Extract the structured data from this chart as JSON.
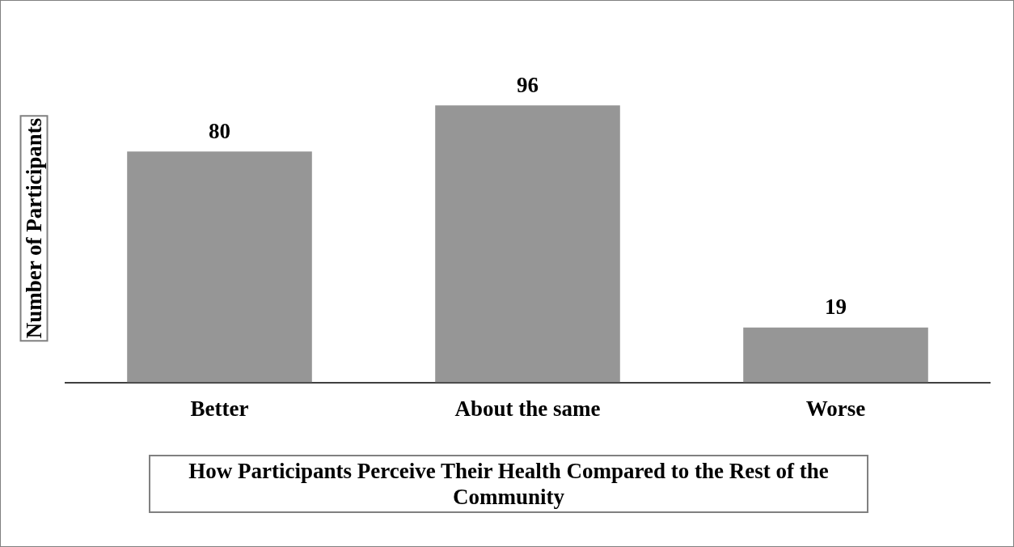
{
  "chart_data": {
    "type": "bar",
    "xlabel": "How Participants Perceive Their Health Compared to the Rest of the Community",
    "ylabel": "Number of Participants",
    "categories": [
      "Better",
      "About the same",
      "Worse"
    ],
    "values": [
      80,
      96,
      19
    ],
    "color": "#969696",
    "data_labels": true,
    "grid": false,
    "legend": false
  }
}
